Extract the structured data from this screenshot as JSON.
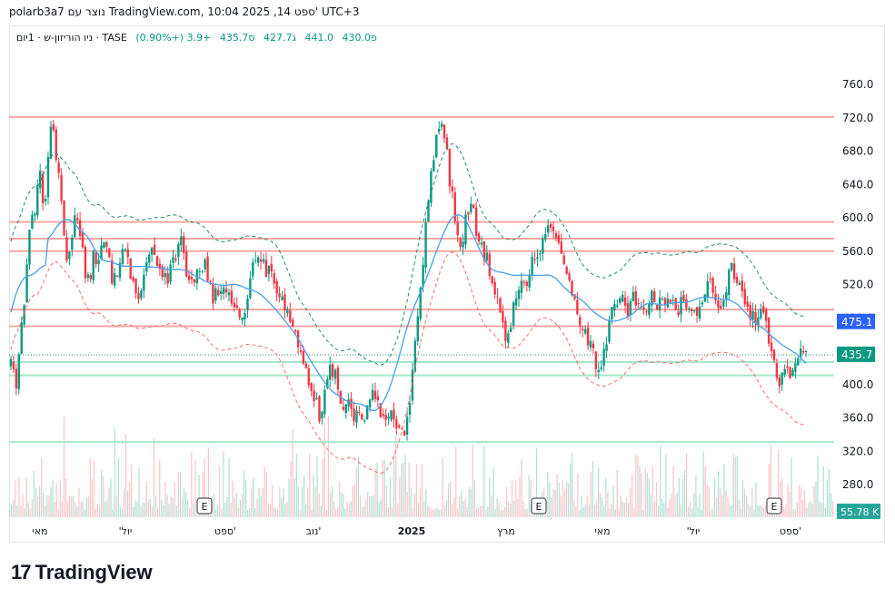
{
  "header": {
    "watermark": "polarb3a7 נוצר עם TradingView.com, 10:04 2025 ,14 ספט' UTC+3"
  },
  "legend": {
    "symbol": "ניו הוריזון-ש · 1יום · TASE",
    "open": "פ430.0",
    "high": "441.0",
    "low": "ג427.7",
    "close": "ס435.7",
    "change": "+3.9 (+0.90%)"
  },
  "badges": {
    "line": "475.1",
    "price": "435.7",
    "volume": "55.78 K",
    "earnings": "E"
  },
  "brand": {
    "logo_text": "TradingView"
  },
  "colors": {
    "up": "#089981",
    "down": "#f23645",
    "hline_red": "#f7a7a3",
    "hline_green": "#a5e6c9",
    "ma": "#4a9fe8",
    "band_upper": "#26897a",
    "band_lower": "#f47068",
    "badge_blue": "#2962ff"
  },
  "chart_data": {
    "type": "candlestick",
    "y_axis": {
      "ticks": [
        280,
        320,
        360,
        400,
        440,
        480,
        520,
        560,
        600,
        640,
        680,
        720,
        760
      ],
      "ylim": [
        262,
        778
      ],
      "position": "right"
    },
    "x_axis": {
      "labels": [
        "מאי",
        "'יול",
        "ספט'",
        "נוב'",
        "2025",
        "מרץ",
        "מאי",
        "'יול",
        "ספט'"
      ]
    },
    "horizontal_levels": {
      "resistance": [
        721,
        595,
        575,
        560,
        490,
        470
      ],
      "support": [
        427,
        411,
        331
      ]
    },
    "close_path": [
      [
        0,
        420
      ],
      [
        3,
        398
      ],
      [
        6,
        460
      ],
      [
        9,
        520
      ],
      [
        12,
        585
      ],
      [
        15,
        610
      ],
      [
        18,
        650
      ],
      [
        21,
        615
      ],
      [
        24,
        690
      ],
      [
        26,
        720
      ],
      [
        29,
        665
      ],
      [
        32,
        620
      ],
      [
        34,
        540
      ],
      [
        37,
        560
      ],
      [
        40,
        600
      ],
      [
        43,
        580
      ],
      [
        46,
        540
      ],
      [
        49,
        520
      ],
      [
        52,
        560
      ],
      [
        55,
        545
      ],
      [
        58,
        570
      ],
      [
        61,
        545
      ],
      [
        64,
        520
      ],
      [
        67,
        535
      ],
      [
        70,
        560
      ],
      [
        73,
        545
      ],
      [
        76,
        520
      ],
      [
        79,
        505
      ],
      [
        82,
        520
      ],
      [
        85,
        540
      ],
      [
        88,
        560
      ],
      [
        91,
        545
      ],
      [
        94,
        520
      ],
      [
        97,
        525
      ],
      [
        100,
        540
      ],
      [
        103,
        560
      ],
      [
        106,
        570
      ],
      [
        109,
        540
      ],
      [
        112,
        520
      ],
      [
        115,
        530
      ],
      [
        118,
        540
      ],
      [
        121,
        550
      ],
      [
        124,
        520
      ],
      [
        127,
        500
      ],
      [
        130,
        520
      ],
      [
        133,
        515
      ],
      [
        136,
        505
      ],
      [
        139,
        490
      ],
      [
        142,
        480
      ],
      [
        145,
        470
      ],
      [
        148,
        500
      ],
      [
        151,
        540
      ],
      [
        154,
        560
      ],
      [
        157,
        545
      ],
      [
        160,
        535
      ],
      [
        163,
        530
      ],
      [
        166,
        515
      ],
      [
        169,
        505
      ],
      [
        172,
        490
      ],
      [
        175,
        470
      ],
      [
        178,
        460
      ],
      [
        181,
        440
      ],
      [
        184,
        420
      ],
      [
        187,
        400
      ],
      [
        190,
        385
      ],
      [
        193,
        350
      ],
      [
        196,
        400
      ],
      [
        199,
        420
      ],
      [
        202,
        410
      ],
      [
        205,
        385
      ],
      [
        208,
        370
      ],
      [
        211,
        380
      ],
      [
        214,
        360
      ],
      [
        217,
        375
      ],
      [
        220,
        365
      ],
      [
        223,
        370
      ],
      [
        226,
        385
      ],
      [
        229,
        375
      ],
      [
        232,
        360
      ],
      [
        235,
        370
      ],
      [
        238,
        360
      ],
      [
        241,
        350
      ],
      [
        244,
        340
      ],
      [
        247,
        355
      ],
      [
        250,
        400
      ],
      [
        253,
        470
      ],
      [
        256,
        530
      ],
      [
        259,
        590
      ],
      [
        262,
        650
      ],
      [
        265,
        700
      ],
      [
        268,
        720
      ],
      [
        271,
        690
      ],
      [
        274,
        640
      ],
      [
        277,
        600
      ],
      [
        280,
        560
      ],
      [
        283,
        590
      ],
      [
        286,
        620
      ],
      [
        289,
        600
      ],
      [
        292,
        570
      ],
      [
        295,
        560
      ],
      [
        298,
        545
      ],
      [
        301,
        520
      ],
      [
        304,
        500
      ],
      [
        307,
        470
      ],
      [
        310,
        450
      ],
      [
        313,
        490
      ],
      [
        316,
        510
      ],
      [
        319,
        530
      ],
      [
        322,
        520
      ],
      [
        325,
        545
      ],
      [
        328,
        560
      ],
      [
        331,
        570
      ],
      [
        334,
        590
      ],
      [
        337,
        580
      ],
      [
        340,
        570
      ],
      [
        343,
        560
      ],
      [
        346,
        530
      ],
      [
        349,
        510
      ],
      [
        352,
        490
      ],
      [
        355,
        470
      ],
      [
        358,
        460
      ],
      [
        361,
        445
      ],
      [
        364,
        430
      ],
      [
        367,
        420
      ],
      [
        370,
        440
      ],
      [
        373,
        470
      ],
      [
        376,
        490
      ],
      [
        379,
        510
      ],
      [
        382,
        500
      ],
      [
        385,
        490
      ],
      [
        388,
        505
      ],
      [
        391,
        495
      ],
      [
        394,
        485
      ],
      [
        397,
        500
      ],
      [
        400,
        510
      ],
      [
        403,
        500
      ],
      [
        406,
        495
      ],
      [
        409,
        505
      ],
      [
        412,
        495
      ],
      [
        415,
        485
      ],
      [
        418,
        500
      ],
      [
        421,
        490
      ],
      [
        424,
        485
      ],
      [
        427,
        480
      ],
      [
        430,
        490
      ],
      [
        433,
        505
      ],
      [
        436,
        520
      ],
      [
        439,
        505
      ],
      [
        442,
        495
      ],
      [
        445,
        500
      ],
      [
        448,
        545
      ],
      [
        451,
        535
      ],
      [
        454,
        520
      ],
      [
        457,
        500
      ],
      [
        460,
        485
      ],
      [
        463,
        480
      ],
      [
        466,
        482
      ],
      [
        469,
        478
      ],
      [
        472,
        470
      ],
      [
        475,
        430
      ],
      [
        478,
        410
      ],
      [
        481,
        405
      ],
      [
        484,
        412
      ],
      [
        487,
        410
      ],
      [
        490,
        430
      ],
      [
        493,
        440
      ],
      [
        496,
        436
      ]
    ],
    "earnings_markers": [
      225,
      593,
      852
    ],
    "volume_badge": "55.78 K"
  }
}
